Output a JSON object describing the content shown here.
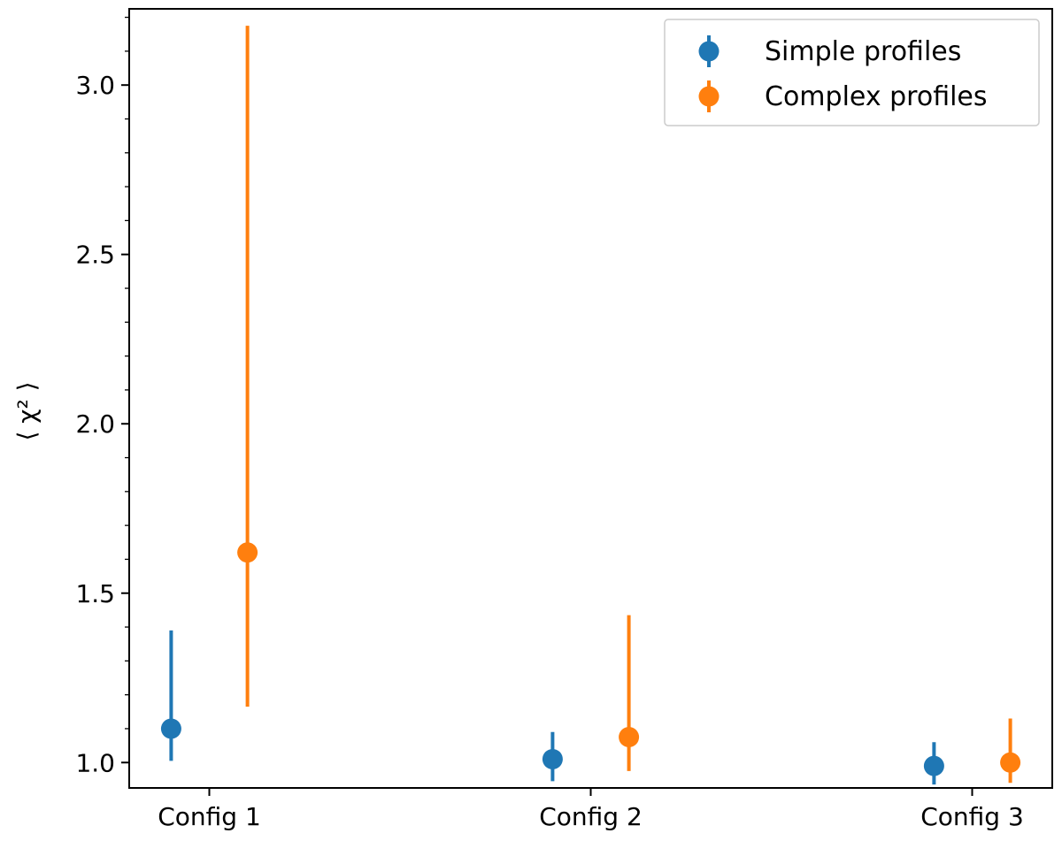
{
  "chart_data": {
    "type": "scatter",
    "title": "",
    "xlabel": "",
    "ylabel": "⟨ χ² ⟩",
    "categories": [
      "Config 1",
      "Config 2",
      "Config 3"
    ],
    "ylim": [
      0.925,
      3.225
    ],
    "yticks": [
      1.0,
      1.5,
      2.0,
      2.5,
      3.0
    ],
    "ytick_labels": [
      "1.0",
      "1.5",
      "2.0",
      "2.5",
      "3.0"
    ],
    "grid": false,
    "legend_position": "top-right",
    "series": [
      {
        "name": "Simple profiles",
        "color": "#1f77b4",
        "offset": -0.1,
        "values": [
          1.1,
          1.01,
          0.99
        ],
        "err_low": [
          1.005,
          0.945,
          0.935
        ],
        "err_high": [
          1.39,
          1.09,
          1.06
        ]
      },
      {
        "name": "Complex profiles",
        "color": "#ff7f0e",
        "offset": 0.1,
        "values": [
          1.62,
          1.075,
          1.0
        ],
        "err_low": [
          1.165,
          0.975,
          0.94
        ],
        "err_high": [
          3.175,
          1.435,
          1.13
        ]
      }
    ]
  }
}
